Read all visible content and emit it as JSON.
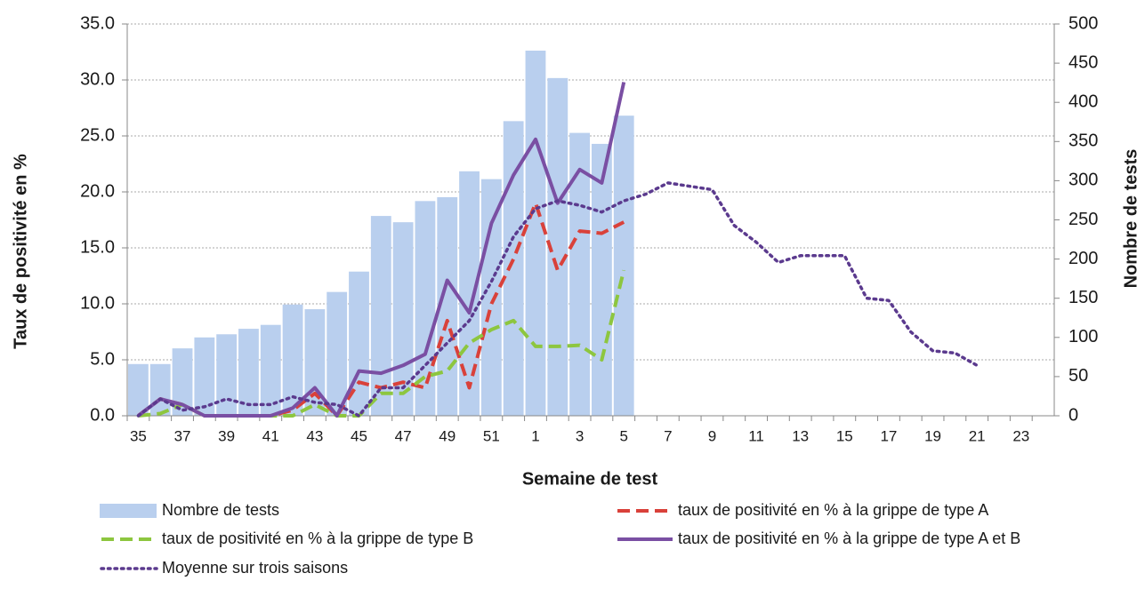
{
  "chart_data": {
    "type": "combo",
    "x_label": "Semaine de test",
    "y_label": "Taux de positivité en %",
    "y2_label": "Nombre de tests",
    "categories": [
      35,
      null,
      37,
      null,
      39,
      null,
      41,
      null,
      43,
      null,
      45,
      null,
      47,
      null,
      49,
      null,
      51,
      null,
      1,
      null,
      3,
      null,
      5,
      null,
      7,
      null,
      9,
      null,
      11,
      null,
      13,
      null,
      15,
      null,
      17,
      null,
      19,
      null,
      21,
      null,
      23,
      null
    ],
    "ylim": [
      0,
      35
    ],
    "yticks": [
      {
        "value": 0,
        "label": "0.0"
      },
      {
        "value": 5,
        "label": "5.0"
      },
      {
        "value": 10,
        "label": "10.0"
      },
      {
        "value": 15,
        "label": "15.0"
      },
      {
        "value": 20,
        "label": "20.0"
      },
      {
        "value": 25,
        "label": "25.0"
      },
      {
        "value": 30,
        "label": "30.0"
      },
      {
        "value": 35,
        "label": "35.0"
      }
    ],
    "y2lim": [
      0,
      500
    ],
    "y2ticks": [
      0,
      50,
      100,
      150,
      200,
      250,
      300,
      350,
      400,
      450,
      500
    ],
    "grid": true,
    "series": [
      {
        "name": "Nombre de tests",
        "type": "bar",
        "axis": "y2",
        "color": "#b9cfee",
        "values": [
          66,
          66,
          86,
          100,
          104,
          111,
          116,
          142,
          136,
          158,
          184,
          255,
          247,
          274,
          279,
          312,
          302,
          376,
          466,
          431,
          361,
          347,
          383,
          null,
          null,
          null,
          null,
          null,
          null,
          null,
          null,
          null,
          null,
          null,
          null,
          null,
          null,
          null,
          null,
          null,
          null,
          null
        ]
      },
      {
        "name": "taux de positivité en % à la grippe de type A",
        "type": "line",
        "style": "dashed",
        "color": "#d9413a",
        "values": [
          0,
          1.5,
          1,
          0,
          0,
          0,
          0,
          0.5,
          2,
          0,
          3,
          2.5,
          3,
          2.5,
          8.5,
          2.5,
          10,
          14,
          19,
          13,
          16.5,
          16.3,
          17.3,
          null,
          null,
          null,
          null,
          null,
          null,
          null,
          null,
          null,
          null,
          null,
          null,
          null,
          null,
          null,
          null,
          null,
          null,
          null
        ]
      },
      {
        "name": "taux de positivité en % à la grippe de type B",
        "type": "line",
        "style": "dashed",
        "color": "#8dc63f",
        "values": [
          0,
          0.2,
          1,
          0,
          0,
          0,
          0,
          0,
          1,
          0,
          0,
          2,
          2,
          3.5,
          4,
          6.5,
          7.7,
          8.5,
          6.2,
          6.2,
          6.3,
          5,
          13,
          null,
          null,
          null,
          null,
          null,
          null,
          null,
          null,
          null,
          null,
          null,
          null,
          null,
          null,
          null,
          null,
          null,
          null,
          null
        ]
      },
      {
        "name": "taux de positivité en % à la grippe de type A et B",
        "type": "line",
        "style": "solid",
        "color": "#7a4fa3",
        "values": [
          0,
          1.5,
          1,
          0,
          0,
          0,
          0,
          0.7,
          2.5,
          0,
          4,
          3.8,
          4.5,
          5.5,
          12.1,
          9.2,
          17.2,
          21.5,
          24.7,
          19,
          22,
          20.8,
          29.8,
          null,
          null,
          null,
          null,
          null,
          null,
          null,
          null,
          null,
          null,
          null,
          null,
          null,
          null,
          null,
          null,
          null,
          null,
          null
        ]
      },
      {
        "name": "Moyenne sur trois saisons",
        "type": "line",
        "style": "dotted",
        "color": "#5b3a8e",
        "values": [
          0,
          1.5,
          0.5,
          0.8,
          1.5,
          1,
          1,
          1.7,
          1.2,
          1,
          0,
          2.5,
          2.5,
          4.5,
          6.5,
          8.5,
          12,
          16,
          18.5,
          19.2,
          18.8,
          18.2,
          19.2,
          19.8,
          20.8,
          20.5,
          20.2,
          17,
          15.5,
          13.7,
          14.3,
          14.3,
          14.3,
          10.5,
          10.3,
          7.5,
          5.8,
          5.6,
          4.5,
          null,
          null,
          null
        ]
      }
    ]
  }
}
